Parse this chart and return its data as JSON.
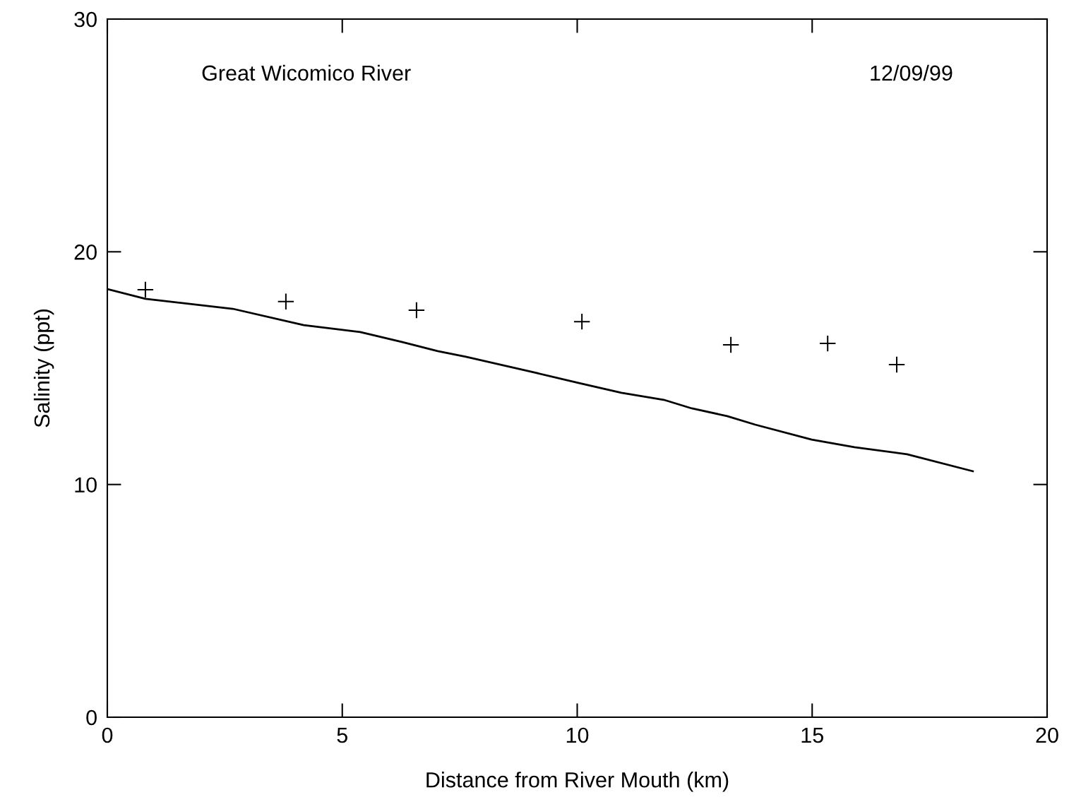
{
  "chart_data": {
    "type": "scatter",
    "xlabel": "Distance from River Mouth (km)",
    "ylabel": "Salinity (ppt)",
    "annotations": [
      "Great Wicomico River",
      "12/09/99"
    ],
    "xlim": [
      0,
      20
    ],
    "ylim": [
      0,
      30
    ],
    "xticks": [
      0,
      5,
      10,
      15,
      20
    ],
    "yticks": [
      0,
      10,
      20,
      30
    ],
    "grid": false,
    "legend": false,
    "series": [
      {
        "type": "line",
        "color": "#000000",
        "marker": "none",
        "line_style": "solid",
        "x": [
          0,
          0.81,
          2.67,
          4.18,
          5.38,
          6.28,
          7.03,
          7.63,
          9.14,
          10.04,
          10.94,
          11.84,
          12.44,
          13.19,
          13.79,
          14.99,
          15.9,
          17.02,
          18.42
        ],
        "values": [
          18.4,
          17.98,
          17.55,
          16.85,
          16.55,
          16.12,
          15.73,
          15.49,
          14.79,
          14.36,
          13.94,
          13.64,
          13.27,
          12.94,
          12.57,
          11.93,
          11.6,
          11.3,
          10.57
        ]
      },
      {
        "color": "#000000",
        "marker": "cross",
        "x": [
          0.81,
          3.8,
          6.58,
          10.1,
          13.27,
          15.33,
          16.8
        ],
        "values": [
          18.37,
          17.86,
          17.49,
          17.0,
          16.0,
          16.06,
          15.15
        ]
      }
    ]
  }
}
